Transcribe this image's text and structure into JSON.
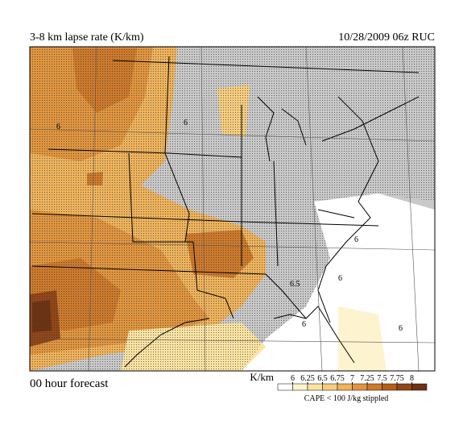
{
  "header": {
    "title": "3-8 km lapse rate (K/km)",
    "valid": "10/28/2009  06z  RUC"
  },
  "footer": {
    "forecast": "00 hour forecast",
    "note": "CAPE < 100 J/kg stippled"
  },
  "map": {
    "contour_labels": [
      "6",
      "6",
      "6.5",
      "6",
      "6",
      "6",
      "6"
    ]
  },
  "legend": {
    "unit": "K/km",
    "levels": [
      6,
      6.25,
      6.5,
      6.75,
      7,
      7.25,
      7.5,
      7.75,
      8
    ],
    "colors": [
      "#ffffff",
      "#fdf3cf",
      "#fbe3a2",
      "#f6cd7f",
      "#eeb35c",
      "#e0953f",
      "#cd7a2c",
      "#b4601f",
      "#924718",
      "#6e3312"
    ]
  }
}
